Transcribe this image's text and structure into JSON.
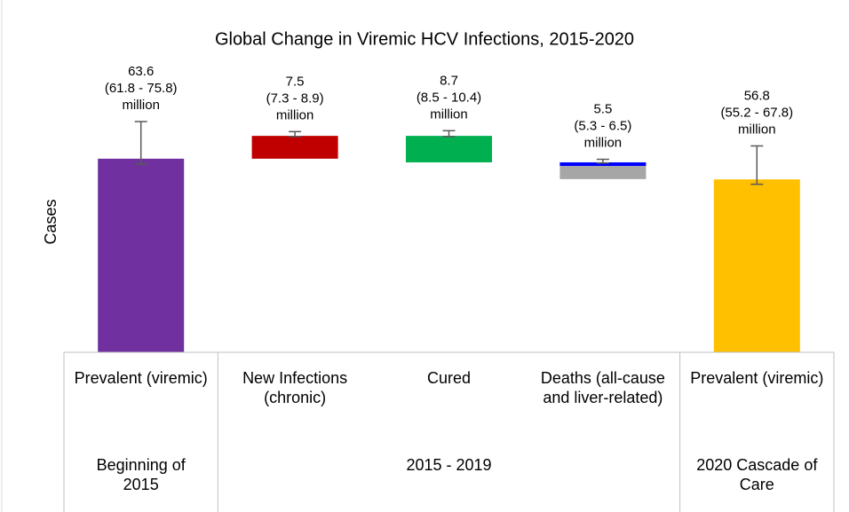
{
  "chart_data": {
    "type": "waterfall",
    "title": "Global Change in Viremic HCV Infections, 2015-2020",
    "y_label": "Cases",
    "categories": [
      "Prevalent (viremic)",
      "New Infections (chronic)",
      "Cured",
      "Deaths (all-cause and liver-related)",
      "Prevalent (viremic)"
    ],
    "measures": [
      "total",
      "increase",
      "decrease",
      "decrease",
      "total"
    ],
    "values": [
      63.6,
      7.5,
      8.7,
      5.5,
      56.8
    ],
    "error_low": [
      61.8,
      7.3,
      8.5,
      5.3,
      55.2
    ],
    "error_high": [
      75.8,
      8.9,
      10.4,
      6.5,
      67.8
    ],
    "range_labels": [
      "(61.8 - 75.8)",
      "(7.3 - 8.9)",
      "(8.5 - 10.4)",
      "(5.3 - 6.5)",
      "(55.2 - 67.8)"
    ],
    "value_unit": "million",
    "colors": [
      "#7030a0",
      "#c00000",
      "#00b050",
      "#a6a6a6",
      "#ffc000"
    ],
    "edge_colors": [
      null,
      null,
      null,
      "#0000ff",
      null
    ],
    "groups": [
      {
        "label": "Beginning of 2015",
        "categories": 1
      },
      {
        "label": "2015 - 2019",
        "categories": 3
      },
      {
        "label": "2020 Cascade of Care",
        "categories": 1
      }
    ]
  }
}
